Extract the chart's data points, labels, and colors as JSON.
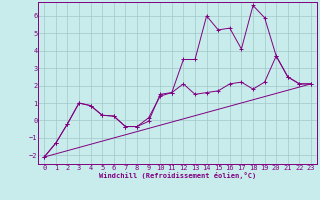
{
  "xlabel": "Windchill (Refroidissement éolien,°C)",
  "background_color": "#c8ecec",
  "grid_color": "#a0c8c8",
  "line_color": "#800080",
  "xlim": [
    -0.5,
    23.5
  ],
  "ylim": [
    -2.5,
    6.8
  ],
  "xticks": [
    0,
    1,
    2,
    3,
    4,
    5,
    6,
    7,
    8,
    9,
    10,
    11,
    12,
    13,
    14,
    15,
    16,
    17,
    18,
    19,
    20,
    21,
    22,
    23
  ],
  "yticks": [
    -2,
    -1,
    0,
    1,
    2,
    3,
    4,
    5,
    6
  ],
  "series1_x": [
    0,
    1,
    2,
    3,
    4,
    5,
    6,
    7,
    8,
    9,
    10,
    11,
    12,
    13,
    14,
    15,
    16,
    17,
    18,
    19,
    20,
    21,
    22,
    23
  ],
  "series1_y": [
    -2.1,
    -1.3,
    -0.2,
    1.0,
    0.85,
    0.3,
    0.25,
    -0.35,
    -0.35,
    -0.05,
    1.5,
    1.6,
    3.5,
    3.5,
    6.0,
    5.2,
    5.3,
    4.1,
    6.6,
    5.9,
    3.7,
    2.5,
    2.1,
    2.1
  ],
  "series2_x": [
    0,
    1,
    2,
    3,
    4,
    5,
    6,
    7,
    8,
    9,
    10,
    11,
    12,
    13,
    14,
    15,
    16,
    17,
    18,
    19,
    20,
    21,
    22,
    23
  ],
  "series2_y": [
    -2.1,
    -1.3,
    -0.2,
    1.0,
    0.85,
    0.3,
    0.25,
    -0.35,
    -0.35,
    0.15,
    1.4,
    1.6,
    2.1,
    1.5,
    1.6,
    1.7,
    2.1,
    2.2,
    1.8,
    2.2,
    3.7,
    2.5,
    2.1,
    2.1
  ],
  "series3_x": [
    0,
    23
  ],
  "series3_y": [
    -2.1,
    2.1
  ]
}
